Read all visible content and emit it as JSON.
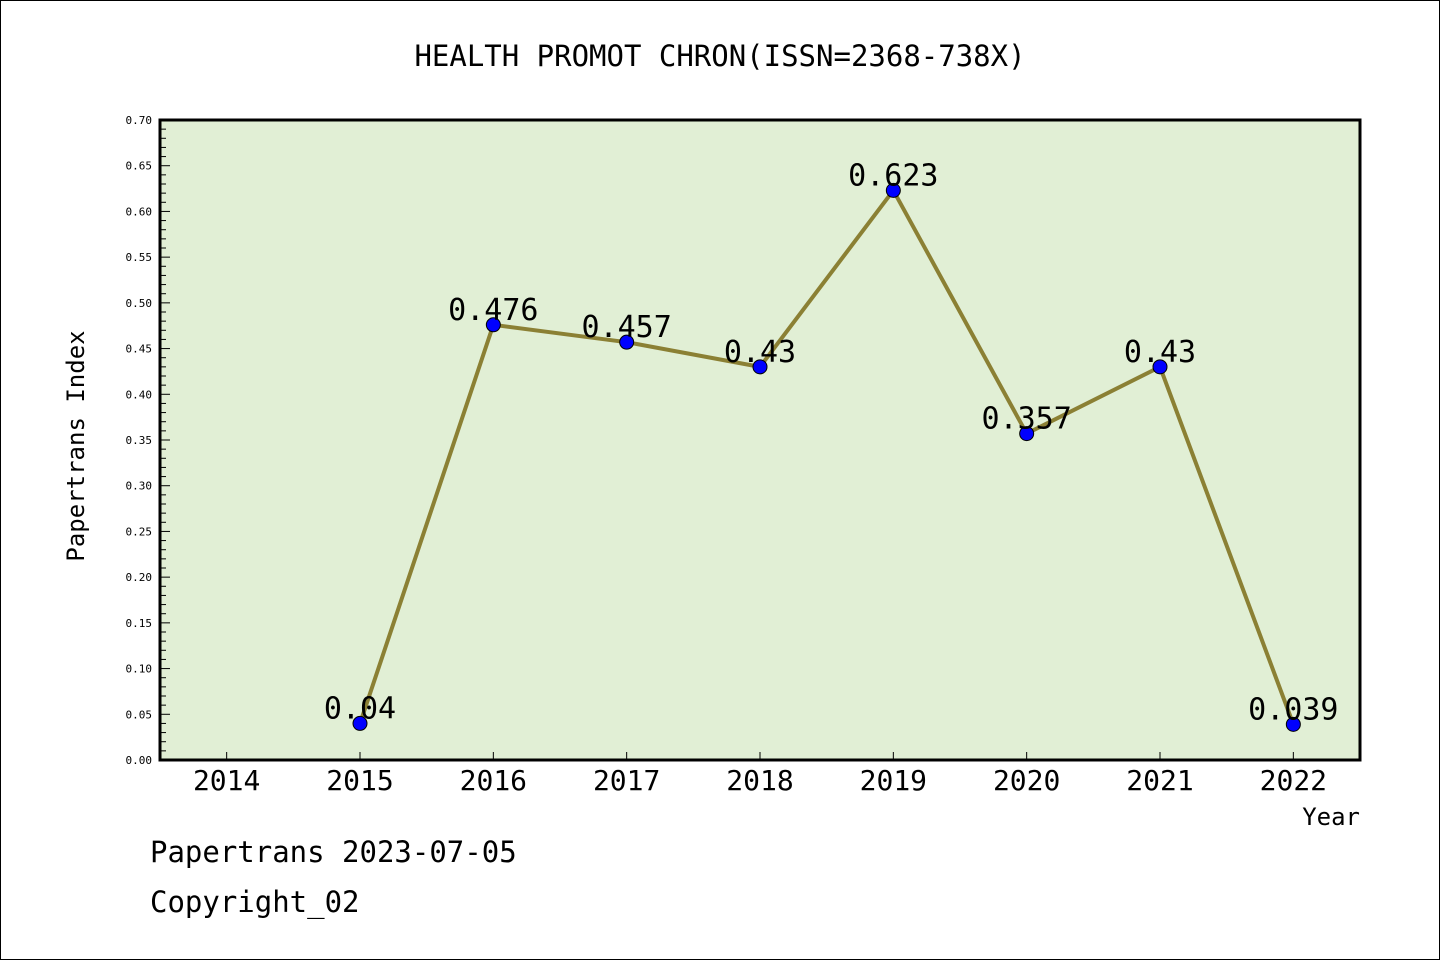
{
  "chart_data": {
    "type": "line",
    "title": "HEALTH PROMOT CHRON(ISSN=2368-738X)",
    "xlabel": "Year",
    "ylabel": "Papertrans Index",
    "x_ticks": [
      "2014",
      "2015",
      "2016",
      "2017",
      "2018",
      "2019",
      "2020",
      "2021",
      "2022"
    ],
    "x": [
      2015,
      2016,
      2017,
      2018,
      2019,
      2020,
      2021,
      2022
    ],
    "values": [
      0.04,
      0.476,
      0.457,
      0.43,
      0.623,
      0.357,
      0.43,
      0.039
    ],
    "data_labels": [
      "0.04",
      "0.476",
      "0.457",
      "0.43",
      "0.623",
      "0.357",
      "0.43",
      "0.039"
    ],
    "xlim": [
      2013.5,
      2022.5
    ],
    "ylim": [
      0.0,
      0.7
    ],
    "y_ticks": [
      "0.00",
      "0.05",
      "0.10",
      "0.15",
      "0.20",
      "0.25",
      "0.30",
      "0.35",
      "0.40",
      "0.45",
      "0.50",
      "0.55",
      "0.60",
      "0.65",
      "0.70"
    ],
    "grid": false,
    "colors": {
      "plot_background": "#e1efd5",
      "line": "#8b8034",
      "marker": "#0000ff"
    }
  },
  "footer": {
    "line1": "Papertrans 2023-07-05",
    "line2": "Copyright_02"
  }
}
